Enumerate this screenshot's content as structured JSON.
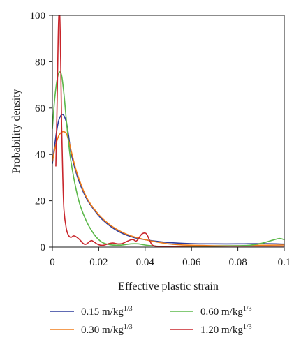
{
  "chart_data": {
    "type": "line",
    "title": "",
    "xlabel": "Effective plastic strain",
    "ylabel": "Probability density",
    "xlim": [
      0,
      0.1
    ],
    "ylim": [
      0,
      100
    ],
    "x_ticks": [
      {
        "value": 0,
        "label": "0"
      },
      {
        "value": 0.02,
        "label": "0.02"
      },
      {
        "value": 0.04,
        "label": "0.04"
      },
      {
        "value": 0.06,
        "label": "0.06"
      },
      {
        "value": 0.08,
        "label": "0.08"
      },
      {
        "value": 0.1,
        "label": "0.1"
      }
    ],
    "y_ticks": [
      {
        "value": 0,
        "label": "0"
      },
      {
        "value": 20,
        "label": "20"
      },
      {
        "value": 40,
        "label": "40"
      },
      {
        "value": 60,
        "label": "60"
      },
      {
        "value": 80,
        "label": "80"
      },
      {
        "value": 100,
        "label": "100"
      }
    ],
    "grid": false,
    "legend_position": "bottom",
    "series": [
      {
        "name": "0.15 m/kg1/3",
        "name_base": "0.15 m/kg",
        "name_sup": "1/3",
        "color": "#2b3a9c",
        "points": [
          [
            0,
            36
          ],
          [
            0.001,
            44
          ],
          [
            0.002,
            51
          ],
          [
            0.003,
            55.5
          ],
          [
            0.0045,
            57.2
          ],
          [
            0.006,
            54
          ],
          [
            0.007,
            48
          ],
          [
            0.008,
            41
          ],
          [
            0.01,
            33
          ],
          [
            0.012,
            27
          ],
          [
            0.015,
            20.5
          ],
          [
            0.02,
            13.5
          ],
          [
            0.025,
            9
          ],
          [
            0.03,
            6
          ],
          [
            0.035,
            4.2
          ],
          [
            0.04,
            3.2
          ],
          [
            0.045,
            2.5
          ],
          [
            0.05,
            2
          ],
          [
            0.06,
            1.5
          ],
          [
            0.07,
            1.4
          ],
          [
            0.08,
            1.4
          ],
          [
            0.09,
            1.5
          ],
          [
            0.1,
            1.3
          ]
        ]
      },
      {
        "name": "0.30 m/kg1/3",
        "name_base": "0.30 m/kg",
        "name_sup": "1/3",
        "color": "#f07d1a",
        "points": [
          [
            0,
            37
          ],
          [
            0.001,
            42
          ],
          [
            0.002,
            46
          ],
          [
            0.003,
            48.5
          ],
          [
            0.0045,
            49.8
          ],
          [
            0.006,
            49
          ],
          [
            0.007,
            46
          ],
          [
            0.008,
            42
          ],
          [
            0.01,
            34
          ],
          [
            0.012,
            28
          ],
          [
            0.015,
            21
          ],
          [
            0.02,
            14
          ],
          [
            0.025,
            9.5
          ],
          [
            0.03,
            6.5
          ],
          [
            0.035,
            4.5
          ],
          [
            0.04,
            3.2
          ],
          [
            0.045,
            2.2
          ],
          [
            0.05,
            1.4
          ],
          [
            0.055,
            1
          ],
          [
            0.06,
            0.8
          ],
          [
            0.07,
            0.6
          ],
          [
            0.08,
            0.6
          ],
          [
            0.09,
            0.8
          ],
          [
            0.1,
            0.9
          ]
        ]
      },
      {
        "name": "0.60 m/kg1/3",
        "name_base": "0.60 m/kg",
        "name_sup": "1/3",
        "color": "#5cb84a",
        "points": [
          [
            0,
            51
          ],
          [
            0.001,
            64
          ],
          [
            0.002,
            72
          ],
          [
            0.003,
            75.5
          ],
          [
            0.004,
            74
          ],
          [
            0.005,
            66
          ],
          [
            0.006,
            55
          ],
          [
            0.007,
            45
          ],
          [
            0.008,
            37
          ],
          [
            0.01,
            26
          ],
          [
            0.012,
            18
          ],
          [
            0.015,
            10.5
          ],
          [
            0.018,
            5.5
          ],
          [
            0.02,
            3.2
          ],
          [
            0.022,
            1.8
          ],
          [
            0.025,
            1
          ],
          [
            0.028,
            0.8
          ],
          [
            0.03,
            0.9
          ],
          [
            0.034,
            1.4
          ],
          [
            0.037,
            1.4
          ],
          [
            0.04,
            0.9
          ],
          [
            0.045,
            0.4
          ],
          [
            0.05,
            0.3
          ],
          [
            0.06,
            0.3
          ],
          [
            0.07,
            0.4
          ],
          [
            0.08,
            0.6
          ],
          [
            0.085,
            0.8
          ],
          [
            0.09,
            1.6
          ],
          [
            0.095,
            3
          ],
          [
            0.098,
            3.7
          ],
          [
            0.1,
            3.2
          ]
        ]
      },
      {
        "name": "1.20 m/kg1/3",
        "name_base": "1.20 m/kg",
        "name_sup": "1/3",
        "color": "#c8252b",
        "points": [
          [
            0.0015,
            35
          ],
          [
            0.002,
            60
          ],
          [
            0.0025,
            90
          ],
          [
            0.0028,
            100
          ],
          [
            0.0032,
            100
          ],
          [
            0.0036,
            80
          ],
          [
            0.004,
            52
          ],
          [
            0.0045,
            30
          ],
          [
            0.005,
            16
          ],
          [
            0.006,
            8
          ],
          [
            0.007,
            5
          ],
          [
            0.008,
            4.2
          ],
          [
            0.009,
            4.8
          ],
          [
            0.01,
            4.6
          ],
          [
            0.012,
            3
          ],
          [
            0.013,
            1.8
          ],
          [
            0.014,
            1.2
          ],
          [
            0.015,
            1.5
          ],
          [
            0.016,
            2.4
          ],
          [
            0.017,
            2.8
          ],
          [
            0.018,
            2.2
          ],
          [
            0.02,
            1
          ],
          [
            0.022,
            0.8
          ],
          [
            0.024,
            1.4
          ],
          [
            0.026,
            1.8
          ],
          [
            0.028,
            1.4
          ],
          [
            0.03,
            1.5
          ],
          [
            0.032,
            2.4
          ],
          [
            0.034,
            3.2
          ],
          [
            0.035,
            3.2
          ],
          [
            0.036,
            2.6
          ],
          [
            0.037,
            3.4
          ],
          [
            0.038,
            5
          ],
          [
            0.039,
            5.9
          ],
          [
            0.0402,
            6
          ],
          [
            0.041,
            5
          ],
          [
            0.042,
            2.8
          ],
          [
            0.043,
            1
          ],
          [
            0.0445,
            0.4
          ],
          [
            0.046,
            0.2
          ],
          [
            0.05,
            0.1
          ],
          [
            0.06,
            0
          ],
          [
            0.07,
            0
          ],
          [
            0.08,
            0
          ],
          [
            0.09,
            0
          ],
          [
            0.1,
            0
          ]
        ]
      }
    ]
  }
}
